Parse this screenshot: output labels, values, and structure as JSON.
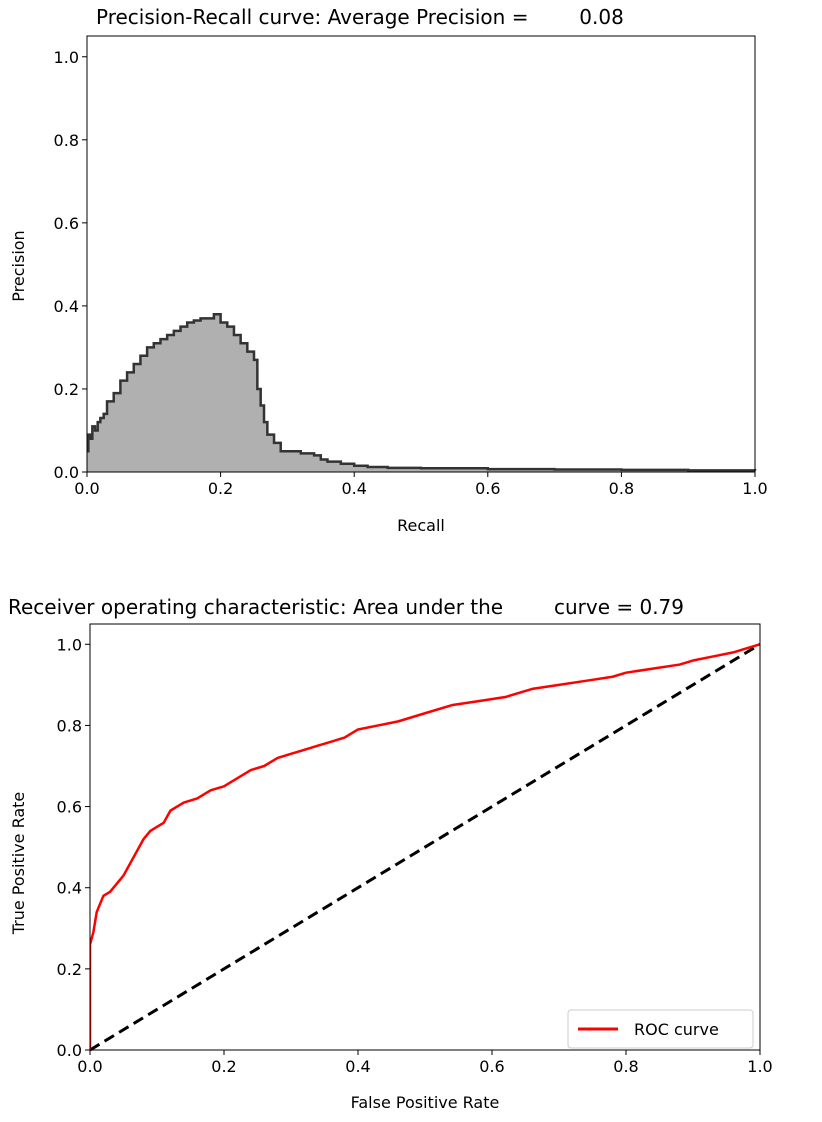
{
  "chart_data": [
    {
      "type": "area",
      "title": "Precision-Recall curve: Average Precision =        0.08",
      "xlabel": "Recall",
      "ylabel": "Precision",
      "xlim": [
        0.0,
        1.0
      ],
      "ylim": [
        0.0,
        1.05
      ],
      "xticks": [
        "0.0",
        "0.2",
        "0.4",
        "0.6",
        "0.8",
        "1.0"
      ],
      "yticks": [
        "0.0",
        "0.2",
        "0.4",
        "0.6",
        "0.8",
        "1.0"
      ],
      "grid": false,
      "fill_color": "#b0b0b0",
      "line_color": "#333333",
      "series": [
        {
          "x": [
            0.0,
            0.002,
            0.005,
            0.008,
            0.012,
            0.016,
            0.02,
            0.025,
            0.03,
            0.04,
            0.05,
            0.06,
            0.07,
            0.08,
            0.09,
            0.1,
            0.11,
            0.12,
            0.13,
            0.14,
            0.15,
            0.16,
            0.17,
            0.18,
            0.19,
            0.2,
            0.21,
            0.22,
            0.23,
            0.24,
            0.25,
            0.255,
            0.26,
            0.265,
            0.27,
            0.28,
            0.29,
            0.3,
            0.32,
            0.34,
            0.35,
            0.36,
            0.38,
            0.4,
            0.42,
            0.45,
            0.5,
            0.6,
            0.7,
            0.8,
            0.9,
            1.0
          ],
          "y": [
            0.05,
            0.09,
            0.08,
            0.11,
            0.1,
            0.12,
            0.13,
            0.14,
            0.17,
            0.19,
            0.22,
            0.24,
            0.26,
            0.28,
            0.3,
            0.31,
            0.32,
            0.33,
            0.34,
            0.35,
            0.36,
            0.365,
            0.37,
            0.37,
            0.38,
            0.36,
            0.35,
            0.33,
            0.31,
            0.29,
            0.27,
            0.2,
            0.16,
            0.12,
            0.09,
            0.07,
            0.05,
            0.05,
            0.045,
            0.04,
            0.03,
            0.025,
            0.02,
            0.015,
            0.012,
            0.01,
            0.009,
            0.007,
            0.006,
            0.005,
            0.004,
            0.003
          ]
        }
      ]
    },
    {
      "type": "line",
      "title": "Receiver operating characteristic: Area under the        curve = 0.79",
      "xlabel": "False Positive Rate",
      "ylabel": "True Positive Rate",
      "xlim": [
        0.0,
        1.0
      ],
      "ylim": [
        0.0,
        1.05
      ],
      "xticks": [
        "0.0",
        "0.2",
        "0.4",
        "0.6",
        "0.8",
        "1.0"
      ],
      "yticks": [
        "0.0",
        "0.2",
        "0.4",
        "0.6",
        "0.8",
        "1.0"
      ],
      "grid": false,
      "legend_position": "lower-right",
      "series": [
        {
          "name": "ROC curve",
          "color": "#ff0000",
          "x": [
            0.0,
            0.0,
            0.005,
            0.01,
            0.015,
            0.02,
            0.03,
            0.04,
            0.05,
            0.06,
            0.07,
            0.08,
            0.09,
            0.1,
            0.11,
            0.12,
            0.13,
            0.14,
            0.16,
            0.18,
            0.2,
            0.22,
            0.24,
            0.26,
            0.28,
            0.3,
            0.32,
            0.34,
            0.36,
            0.38,
            0.4,
            0.43,
            0.46,
            0.5,
            0.54,
            0.58,
            0.62,
            0.66,
            0.7,
            0.74,
            0.78,
            0.8,
            0.84,
            0.88,
            0.9,
            0.93,
            0.96,
            0.98,
            1.0
          ],
          "y": [
            0.0,
            0.26,
            0.29,
            0.34,
            0.36,
            0.38,
            0.39,
            0.41,
            0.43,
            0.46,
            0.49,
            0.52,
            0.54,
            0.55,
            0.56,
            0.59,
            0.6,
            0.61,
            0.62,
            0.64,
            0.65,
            0.67,
            0.69,
            0.7,
            0.72,
            0.73,
            0.74,
            0.75,
            0.76,
            0.77,
            0.79,
            0.8,
            0.81,
            0.83,
            0.85,
            0.86,
            0.87,
            0.89,
            0.9,
            0.91,
            0.92,
            0.93,
            0.94,
            0.95,
            0.96,
            0.97,
            0.98,
            0.99,
            1.0
          ]
        },
        {
          "name": "",
          "color": "#000000",
          "dashed": true,
          "x": [
            0.0,
            1.0
          ],
          "y": [
            0.0,
            1.0
          ]
        }
      ]
    }
  ]
}
